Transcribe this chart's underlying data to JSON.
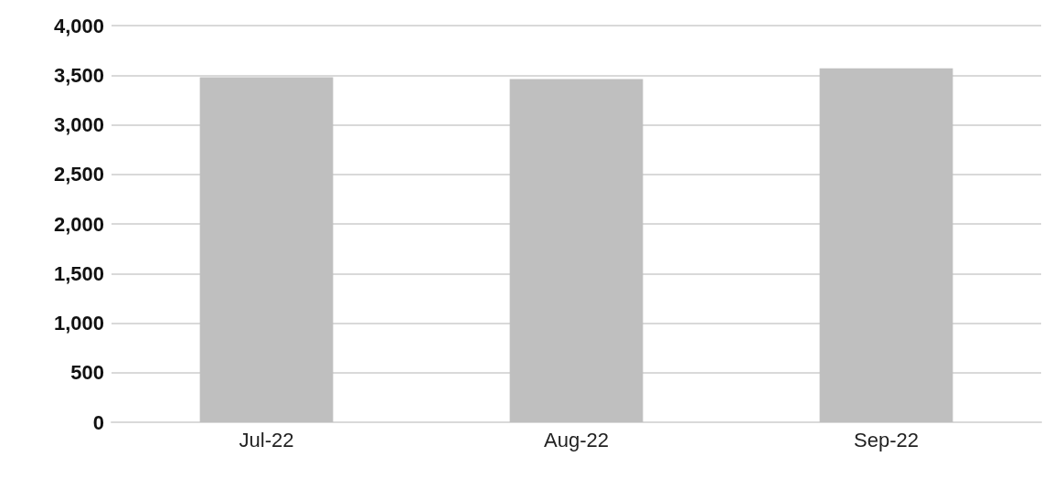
{
  "chart_data": {
    "type": "bar",
    "categories": [
      "Jul-22",
      "Aug-22",
      "Sep-22"
    ],
    "values": [
      3480,
      3460,
      3570
    ],
    "color": "#bfbfbf",
    "ylim": [
      0,
      4000
    ],
    "yticks": [
      0,
      500,
      {
        "value": 1000,
        "label": "1,000"
      },
      {
        "value": 1500,
        "label": "1,500"
      },
      {
        "value": 2000,
        "label": "2,000"
      },
      {
        "value": 2500,
        "label": "2,500"
      },
      {
        "value": 3000,
        "label": "3,000"
      },
      {
        "value": 3500,
        "label": "3,500"
      },
      {
        "value": 4000,
        "label": "4,000"
      }
    ],
    "grid": "y"
  }
}
